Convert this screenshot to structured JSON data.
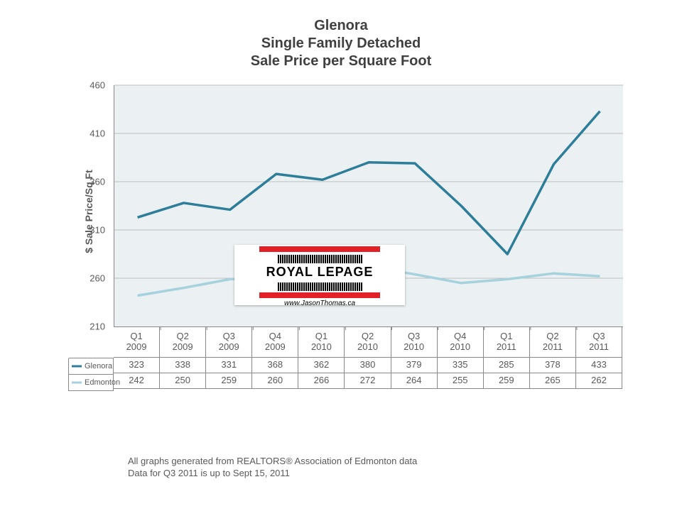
{
  "title": {
    "line1": "Glenora",
    "line2": "Single Family Detached",
    "line3": "Sale Price per Square Foot",
    "fontsize": 20
  },
  "chart": {
    "type": "line",
    "background_color": "#ebf0f2",
    "grid_color": "#bfbfbf",
    "y_axis_title": "$ Sale Price/Sq Ft",
    "ylim": [
      210,
      460
    ],
    "ytick_step": 50,
    "yticks": [
      210,
      260,
      310,
      360,
      410,
      460
    ],
    "categories": [
      {
        "q": "Q1",
        "y": "2009"
      },
      {
        "q": "Q2",
        "y": "2009"
      },
      {
        "q": "Q3",
        "y": "2009"
      },
      {
        "q": "Q4",
        "y": "2009"
      },
      {
        "q": "Q1",
        "y": "2010"
      },
      {
        "q": "Q2",
        "y": "2010"
      },
      {
        "q": "Q3",
        "y": "2010"
      },
      {
        "q": "Q4",
        "y": "2010"
      },
      {
        "q": "Q1",
        "y": "2011"
      },
      {
        "q": "Q2",
        "y": "2011"
      },
      {
        "q": "Q3",
        "y": "2011"
      }
    ],
    "series": [
      {
        "name": "Glenora",
        "color": "#2e7e99",
        "stroke_width": 3.5,
        "values": [
          323,
          338,
          331,
          368,
          362,
          380,
          379,
          335,
          285,
          378,
          433
        ]
      },
      {
        "name": "Edmonton",
        "color": "#a6d2de",
        "stroke_width": 3.5,
        "values": [
          242,
          250,
          259,
          260,
          266,
          272,
          264,
          255,
          259,
          265,
          262
        ]
      }
    ]
  },
  "logo": {
    "brand": "ROYAL LEPAGE",
    "url": "www.JasonThomas.ca",
    "bar_color": "#e12027"
  },
  "footer": {
    "line1": "All graphs generated from REALTORS® Association of Edmonton data",
    "line2": "Data for Q3 2011 is up to Sept 15, 2011"
  }
}
